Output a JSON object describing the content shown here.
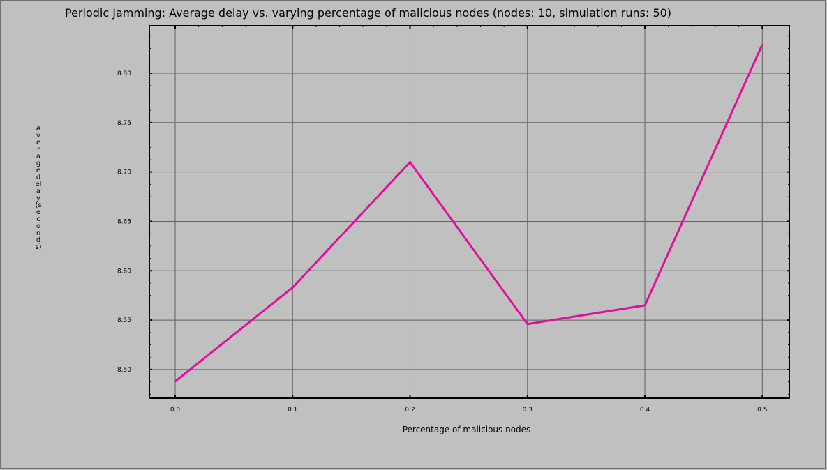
{
  "chart_data": {
    "type": "line",
    "title": "Periodic Jamming: Average delay vs. varying percentage of malicious nodes (nodes: 10, simulation runs: 50)",
    "xlabel": "Percentage of malicious nodes",
    "ylabel": "Average delay (seconds)",
    "x": [
      0.0,
      0.1,
      0.2,
      0.3,
      0.4,
      0.5
    ],
    "x_tick_labels": [
      "0.0",
      "0.1",
      "0.2",
      "0.3",
      "0.4",
      "0.5"
    ],
    "y_tick_values": [
      8.5,
      8.55,
      8.6,
      8.65,
      8.7,
      8.75,
      8.8
    ],
    "y_tick_labels": [
      "8.50",
      "8.55",
      "8.60",
      "8.65",
      "8.70",
      "8.75",
      "8.80"
    ],
    "xlim": [
      -0.022,
      0.523
    ],
    "ylim": [
      8.471,
      8.848
    ],
    "series": [
      {
        "values": [
          8.488,
          8.583,
          8.71,
          8.546,
          8.565,
          8.829
        ],
        "color": "#e0109e"
      }
    ],
    "grid": true,
    "legend": "none"
  },
  "colors": {
    "background": "#c0c0c0",
    "line": "#e0109e",
    "grid": "#606060"
  }
}
